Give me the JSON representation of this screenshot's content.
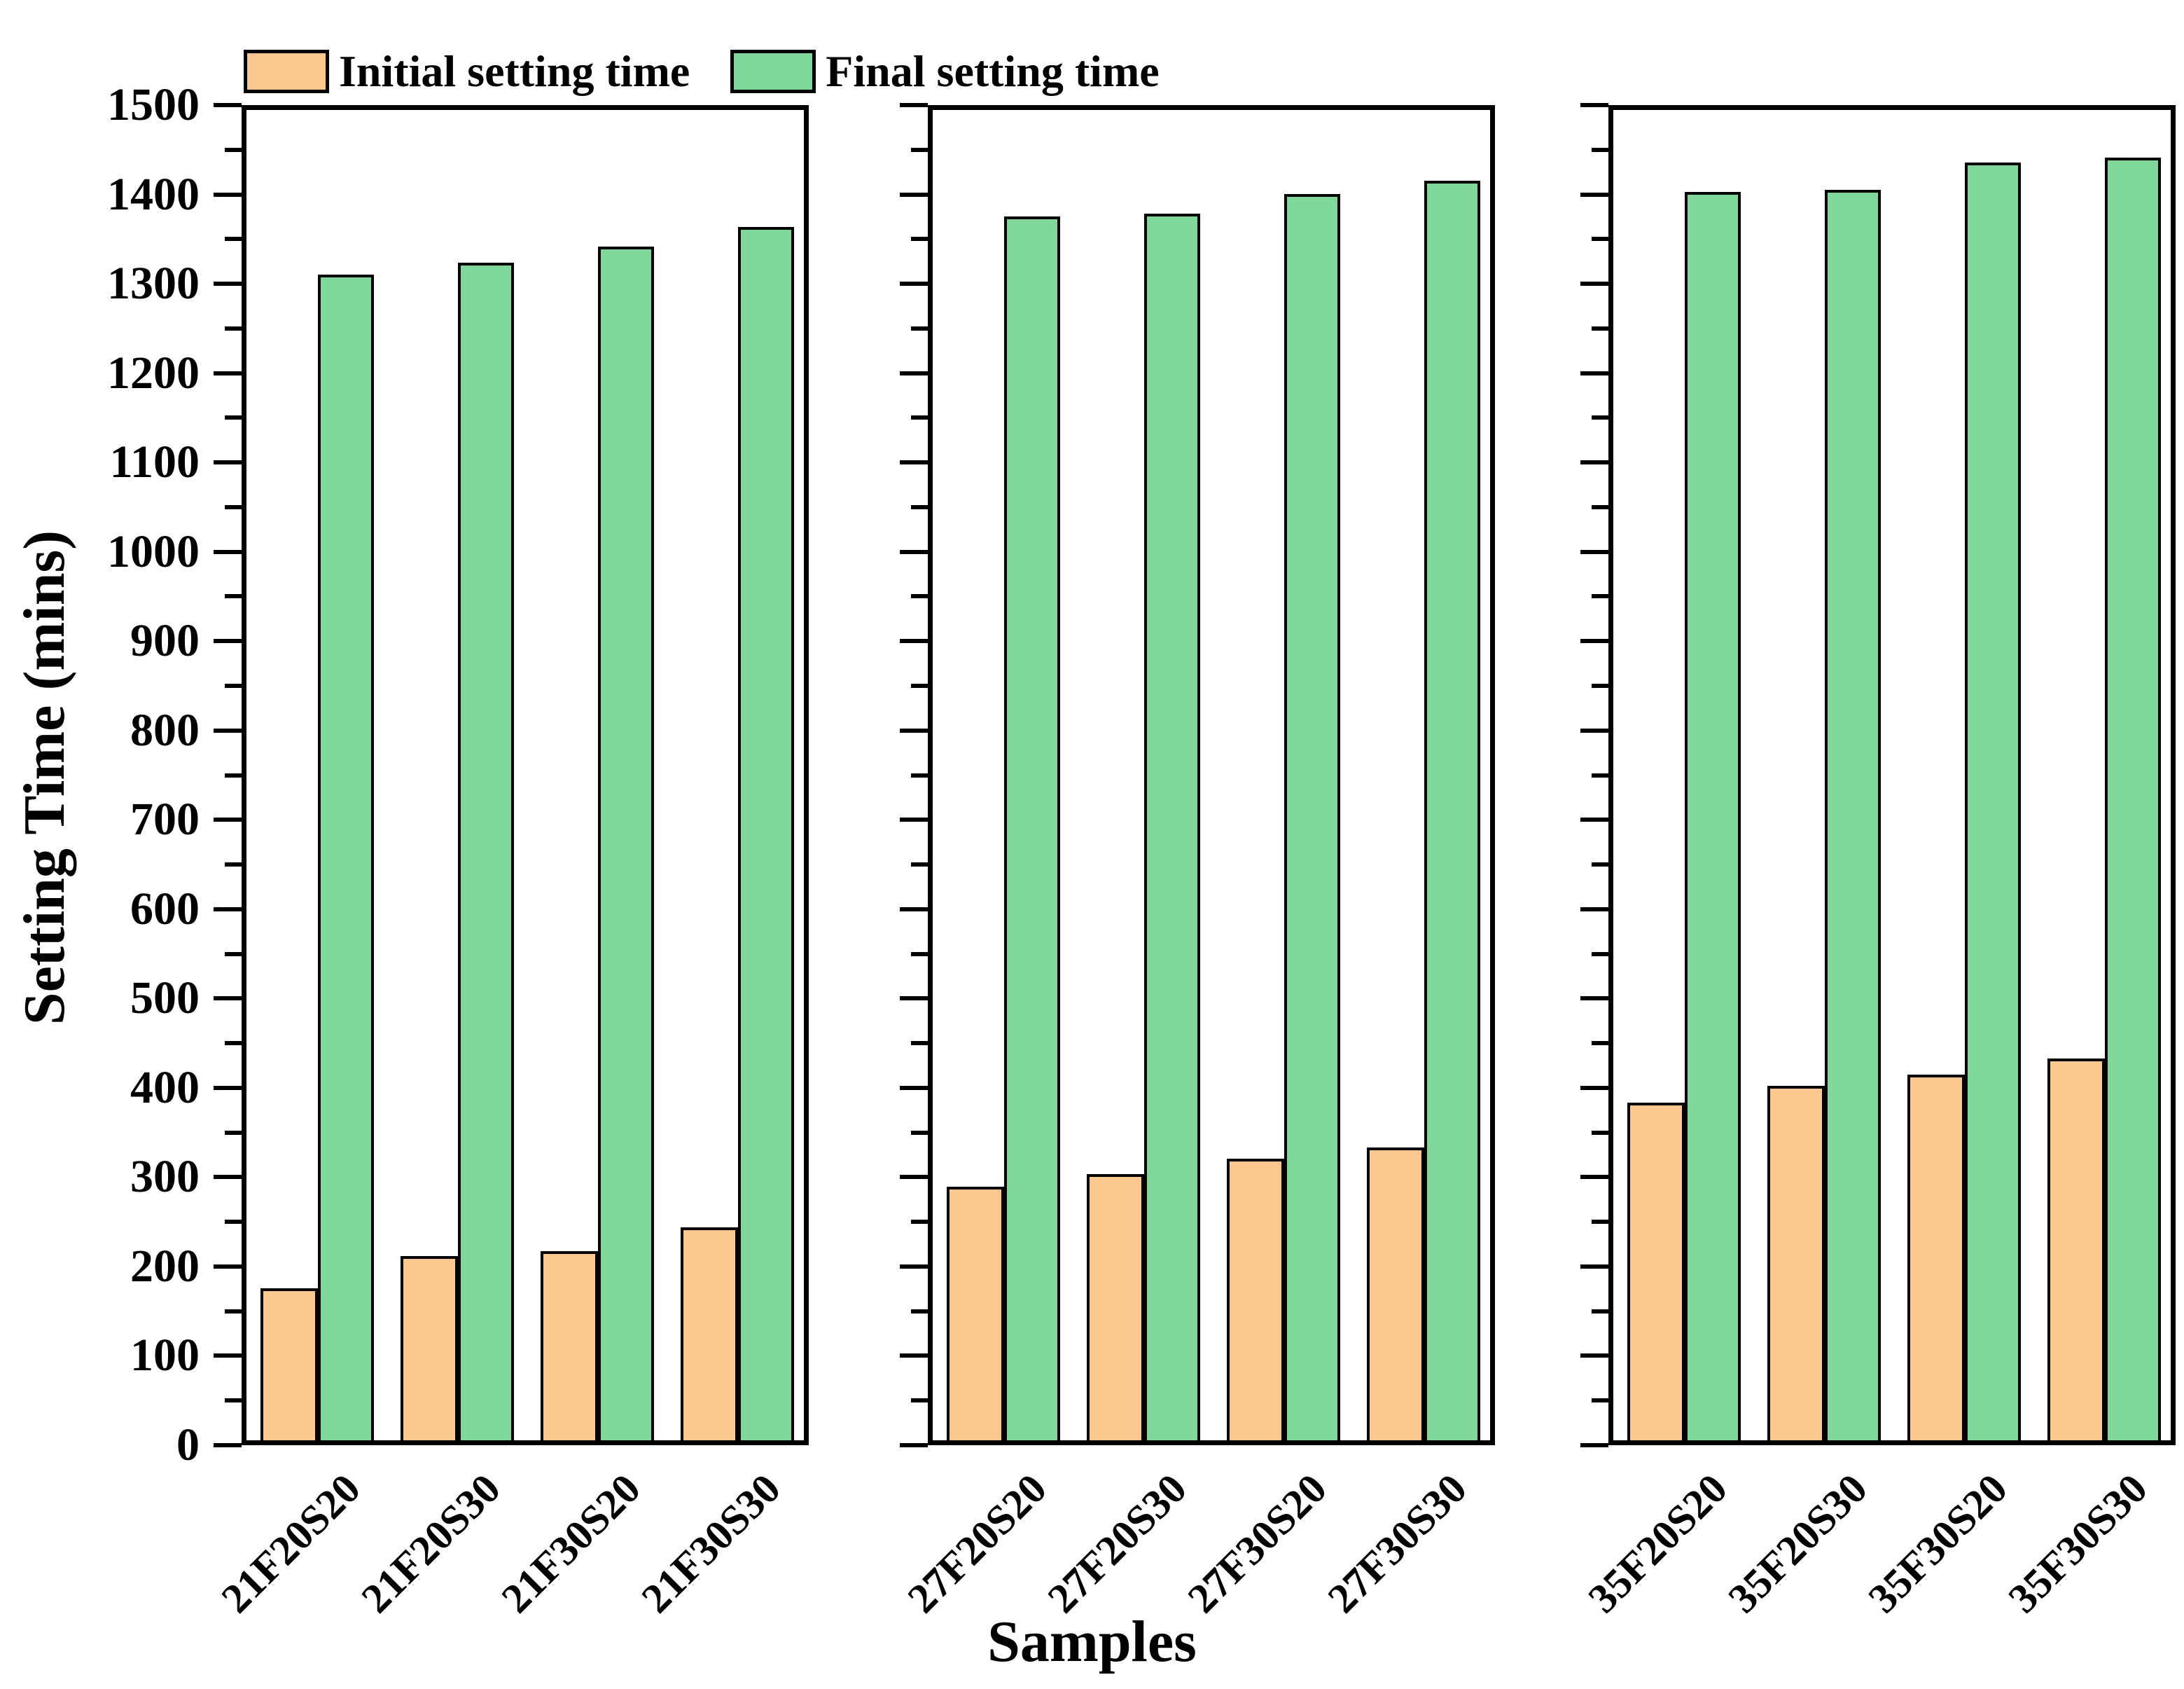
{
  "figure": {
    "xlabel": "Samples",
    "ylabel": "Setting Time (mins)"
  },
  "legend": {
    "items": [
      {
        "label": "Initial setting time",
        "color": "#FBC890"
      },
      {
        "label": "Final setting time",
        "color": "#7FD79A"
      }
    ]
  },
  "colors": {
    "initial_fill": "#FBC890",
    "final_fill": "#7FD79A",
    "bar_stroke": "#000000",
    "axis": "#000000",
    "background": "#ffffff"
  },
  "chart_data": {
    "type": "bar",
    "title": "",
    "xlabel": "Samples",
    "ylabel": "Setting Time (mins)",
    "ylim": [
      0,
      1500
    ],
    "y_major_step": 100,
    "y_minor_step": 50,
    "grid": false,
    "legend_position": "top-left",
    "y_ticks": [
      0,
      100,
      200,
      300,
      400,
      500,
      600,
      700,
      800,
      900,
      1000,
      1100,
      1200,
      1300,
      1400,
      1500
    ],
    "series_names": [
      "Initial setting time",
      "Final setting time"
    ],
    "panels": [
      {
        "categories": [
          "21F20S20",
          "21F20S30",
          "21F30S20",
          "21F30S30"
        ],
        "series": [
          {
            "name": "Initial setting time",
            "values": [
              170,
              206,
              212,
              238
            ]
          },
          {
            "name": "Final setting time",
            "values": [
              1305,
              1318,
              1336,
              1358
            ]
          }
        ]
      },
      {
        "categories": [
          "27F20S20",
          "27F20S30",
          "27F30S20",
          "27F30S30"
        ],
        "series": [
          {
            "name": "Initial setting time",
            "values": [
              284,
              298,
              315,
              328
            ]
          },
          {
            "name": "Final setting time",
            "values": [
              1370,
              1373,
              1395,
              1410
            ]
          }
        ]
      },
      {
        "categories": [
          "35F20S20",
          "35F20S30",
          "35F30S20",
          "35F30S30"
        ],
        "series": [
          {
            "name": "Initial setting time",
            "values": [
              378,
              397,
              409,
              427
            ]
          },
          {
            "name": "Final setting time",
            "values": [
              1397,
              1400,
              1430,
              1436
            ]
          }
        ]
      }
    ]
  }
}
